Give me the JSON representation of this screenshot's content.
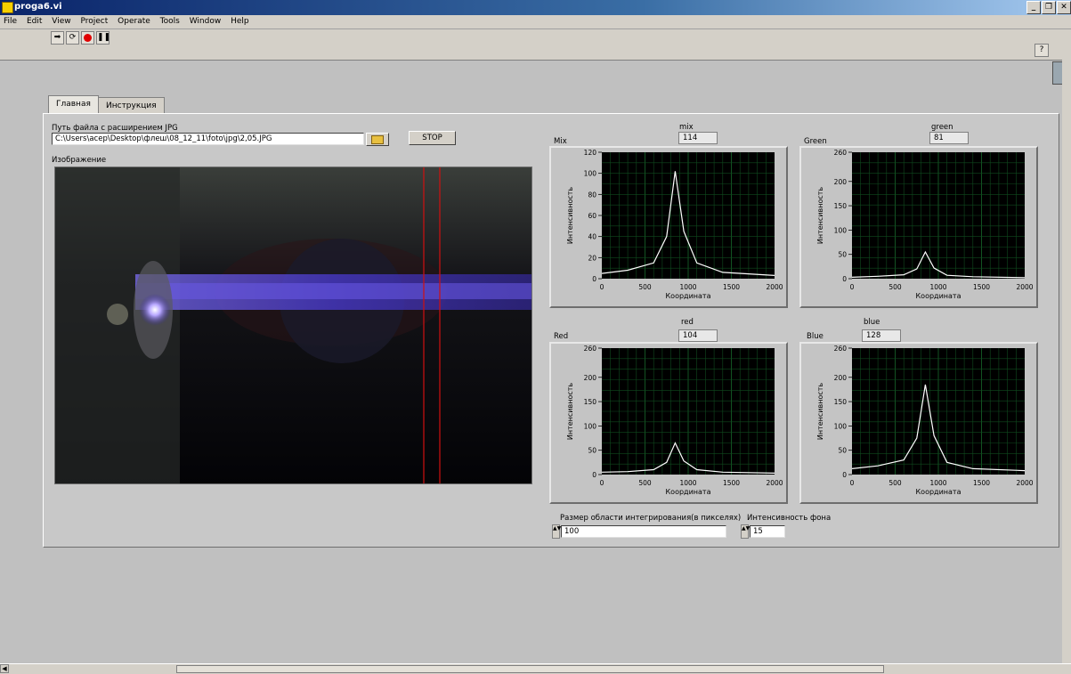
{
  "window": {
    "title": "proga6.vi"
  },
  "menu": [
    "File",
    "Edit",
    "View",
    "Project",
    "Operate",
    "Tools",
    "Window",
    "Help"
  ],
  "tabs": [
    {
      "label": "Главная",
      "active": true
    },
    {
      "label": "Инструкция",
      "active": false
    }
  ],
  "path": {
    "label": "Путь файла с расширением JPG",
    "value": "C:\\Users\\acep\\Desktop\\флеш\\08_12_11\\foto\\jpg\\2,05.JPG"
  },
  "stop_label": "STOP",
  "image_label": "Изображение",
  "graphs": {
    "mix": {
      "indicator_label": "mix",
      "value": "114",
      "graph_label": "Mix",
      "ymax": 120,
      "yticks": [
        "120",
        "100",
        "80",
        "60",
        "40",
        "20",
        "0"
      ]
    },
    "green": {
      "indicator_label": "green",
      "value": "81",
      "graph_label": "Green",
      "ymax": 260,
      "yticks": [
        "260",
        "200",
        "150",
        "100",
        "50",
        "0"
      ]
    },
    "red": {
      "indicator_label": "red",
      "value": "104",
      "graph_label": "Red",
      "ymax": 260,
      "yticks": [
        "260",
        "200",
        "150",
        "100",
        "50",
        "0"
      ]
    },
    "blue": {
      "indicator_label": "blue",
      "value": "128",
      "graph_label": "Blue",
      "ymax": 260,
      "yticks": [
        "260",
        "200",
        "150",
        "100",
        "50",
        "0"
      ]
    }
  },
  "axis": {
    "x_label": "Координата",
    "y_label": "Интенсивность",
    "xticks": [
      "0",
      "500",
      "1000",
      "1500",
      "2000"
    ]
  },
  "integration": {
    "label": "Размер области интегрирования(в пикселях)",
    "value": "100"
  },
  "background": {
    "label": "Интенсивность фона",
    "value": "15"
  },
  "chart_data": [
    {
      "type": "line",
      "title": "Mix",
      "xlabel": "Координата",
      "ylabel": "Интенсивность",
      "xlim": [
        0,
        2000
      ],
      "ylim": [
        0,
        120
      ],
      "series": [
        {
          "x": [
            0,
            300,
            600,
            750,
            850,
            950,
            1100,
            1400,
            2000
          ],
          "y": [
            5,
            8,
            15,
            40,
            102,
            45,
            15,
            6,
            3
          ]
        }
      ]
    },
    {
      "type": "line",
      "title": "Green",
      "xlabel": "Координата",
      "ylabel": "Интенсивность",
      "xlim": [
        0,
        2000
      ],
      "ylim": [
        0,
        260
      ],
      "series": [
        {
          "x": [
            0,
            300,
            600,
            750,
            850,
            950,
            1100,
            1400,
            2000
          ],
          "y": [
            3,
            5,
            8,
            20,
            55,
            22,
            7,
            4,
            2
          ]
        }
      ]
    },
    {
      "type": "line",
      "title": "Red",
      "xlabel": "Координата",
      "ylabel": "Интенсивность",
      "xlim": [
        0,
        2000
      ],
      "ylim": [
        0,
        260
      ],
      "series": [
        {
          "x": [
            0,
            300,
            600,
            750,
            850,
            950,
            1100,
            1400,
            2000
          ],
          "y": [
            5,
            6,
            10,
            25,
            65,
            28,
            10,
            5,
            3
          ]
        }
      ]
    },
    {
      "type": "line",
      "title": "Blue",
      "xlabel": "Координата",
      "ylabel": "Интенсивность",
      "xlim": [
        0,
        2000
      ],
      "ylim": [
        0,
        260
      ],
      "series": [
        {
          "x": [
            0,
            300,
            600,
            750,
            850,
            950,
            1100,
            1400,
            2000
          ],
          "y": [
            12,
            18,
            30,
            75,
            185,
            80,
            25,
            12,
            8
          ]
        }
      ]
    }
  ]
}
